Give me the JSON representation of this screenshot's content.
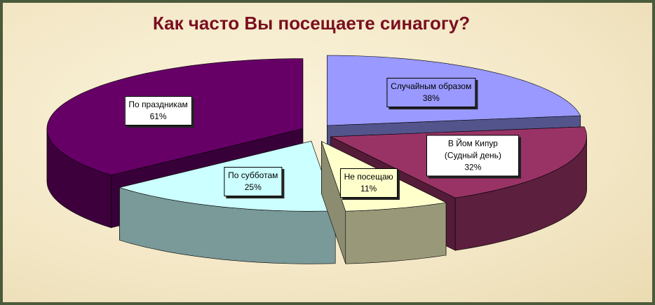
{
  "chart_data": {
    "type": "pie",
    "title": "Как часто Вы посещаете синагогу?",
    "categories": [
      "Случайным образом",
      "В Йом Кипур (Судный день)",
      "Не посещаю",
      "По субботам",
      "По праздникам"
    ],
    "values": [
      38,
      32,
      11,
      25,
      61
    ],
    "value_labels": [
      "38%",
      "32%",
      "11%",
      "25%",
      "61%"
    ],
    "colors": [
      "#9999ff",
      "#993366",
      "#ffffcc",
      "#ccffff",
      "#660066"
    ]
  }
}
